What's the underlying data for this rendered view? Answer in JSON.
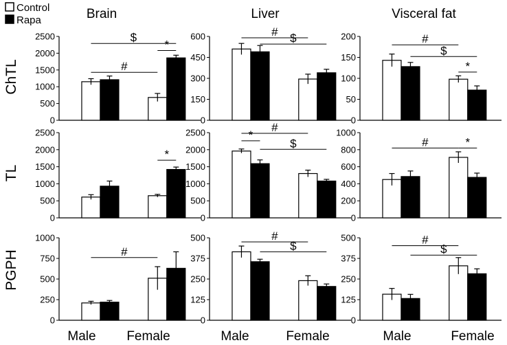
{
  "legend": [
    {
      "label": "Control",
      "fill": "#ffffff"
    },
    {
      "label": "Rapa",
      "fill": "#000000"
    }
  ],
  "columns": [
    "Brain",
    "Liver",
    "Visceral fat"
  ],
  "rows": [
    "ChTL",
    "TL",
    "PGPH"
  ],
  "x_categories": [
    "Male",
    "Female"
  ],
  "colors": {
    "control": "#ffffff",
    "rapa": "#000000",
    "stroke": "#000000"
  },
  "chart_data": [
    {
      "type": "bar",
      "row": "ChTL",
      "column": "Brain",
      "categories": [
        "Male",
        "Female"
      ],
      "ylim": [
        0,
        2500
      ],
      "yticks": [
        "0",
        "500",
        "1000",
        "1500",
        "2000",
        "2500"
      ],
      "series": [
        {
          "name": "Control",
          "values": [
            1150,
            680
          ],
          "errors": [
            90,
            120
          ]
        },
        {
          "name": "Rapa",
          "values": [
            1210,
            1860
          ],
          "errors": [
            110,
            80
          ]
        }
      ],
      "annotations": [
        {
          "text": "$",
          "from": [
            0,
            0
          ],
          "to": [
            1,
            1
          ],
          "y": 2290
        },
        {
          "text": "*",
          "from": [
            1,
            0
          ],
          "to": [
            1,
            1
          ],
          "y": 2080
        },
        {
          "text": "#",
          "from": [
            0,
            0
          ],
          "to": [
            1,
            0
          ],
          "y": 1430
        }
      ]
    },
    {
      "type": "bar",
      "row": "ChTL",
      "column": "Liver",
      "categories": [
        "Male",
        "Female"
      ],
      "ylim": [
        0,
        600
      ],
      "yticks": [
        "0",
        "150",
        "300",
        "450",
        "600"
      ],
      "series": [
        {
          "name": "Control",
          "values": [
            510,
            295
          ],
          "errors": [
            40,
            35
          ]
        },
        {
          "name": "Rapa",
          "values": [
            490,
            340
          ],
          "errors": [
            45,
            25
          ]
        }
      ],
      "annotations": [
        {
          "text": "#",
          "from": [
            0,
            0
          ],
          "to": [
            1,
            0
          ],
          "y": 590
        },
        {
          "text": "$",
          "from": [
            0,
            1
          ],
          "to": [
            1,
            1
          ],
          "y": 545
        }
      ]
    },
    {
      "type": "bar",
      "row": "ChTL",
      "column": "Visceral fat",
      "categories": [
        "Male",
        "Female"
      ],
      "ylim": [
        0,
        200
      ],
      "yticks": [
        "0",
        "50",
        "100",
        "150",
        "200"
      ],
      "series": [
        {
          "name": "Control",
          "values": [
            143,
            98
          ],
          "errors": [
            15,
            8
          ]
        },
        {
          "name": "Rapa",
          "values": [
            128,
            72
          ],
          "errors": [
            10,
            10
          ]
        }
      ],
      "annotations": [
        {
          "text": "#",
          "from": [
            0,
            0
          ],
          "to": [
            1,
            0
          ],
          "y": 180
        },
        {
          "text": "$",
          "from": [
            0,
            1
          ],
          "to": [
            1,
            1
          ],
          "y": 152
        },
        {
          "text": "*",
          "from": [
            1,
            0
          ],
          "to": [
            1,
            1
          ],
          "y": 115
        }
      ]
    },
    {
      "type": "bar",
      "row": "TL",
      "column": "Brain",
      "categories": [
        "Male",
        "Female"
      ],
      "ylim": [
        0,
        2500
      ],
      "yticks": [
        "0",
        "500",
        "1000",
        "1500",
        "2000",
        "2500"
      ],
      "series": [
        {
          "name": "Control",
          "values": [
            610,
            650
          ],
          "errors": [
            70,
            40
          ]
        },
        {
          "name": "Rapa",
          "values": [
            930,
            1420
          ],
          "errors": [
            150,
            70
          ]
        }
      ],
      "annotations": [
        {
          "text": "*",
          "from": [
            1,
            0
          ],
          "to": [
            1,
            1
          ],
          "y": 1690
        }
      ]
    },
    {
      "type": "bar",
      "row": "TL",
      "column": "Liver",
      "categories": [
        "Male",
        "Female"
      ],
      "ylim": [
        0,
        2500
      ],
      "yticks": [
        "0",
        "500",
        "1000",
        "1500",
        "2000",
        "2500"
      ],
      "series": [
        {
          "name": "Control",
          "values": [
            1960,
            1300
          ],
          "errors": [
            60,
            100
          ]
        },
        {
          "name": "Rapa",
          "values": [
            1590,
            1080
          ],
          "errors": [
            110,
            50
          ]
        }
      ],
      "annotations": [
        {
          "text": "*",
          "from": [
            0,
            0
          ],
          "to": [
            0,
            1
          ],
          "y": 2260
        },
        {
          "text": "#",
          "from": [
            0,
            0
          ],
          "to": [
            1,
            0
          ],
          "y": 2480
        },
        {
          "text": "$",
          "from": [
            0,
            1
          ],
          "to": [
            1,
            1
          ],
          "y": 2010
        }
      ]
    },
    {
      "type": "bar",
      "row": "TL",
      "column": "Visceral fat",
      "categories": [
        "Male",
        "Female"
      ],
      "ylim": [
        0,
        1000
      ],
      "yticks": [
        "0",
        "200",
        "400",
        "600",
        "800",
        "1000"
      ],
      "series": [
        {
          "name": "Control",
          "values": [
            450,
            710
          ],
          "errors": [
            70,
            65
          ]
        },
        {
          "name": "Rapa",
          "values": [
            485,
            475
          ],
          "errors": [
            65,
            50
          ]
        }
      ],
      "annotations": [
        {
          "text": "#",
          "from": [
            0,
            0
          ],
          "to": [
            1,
            0
          ],
          "y": 820
        },
        {
          "text": "*",
          "from": [
            1,
            0
          ],
          "to": [
            1,
            1
          ],
          "y": 820
        }
      ]
    },
    {
      "type": "bar",
      "row": "PGPH",
      "column": "Brain",
      "categories": [
        "Male",
        "Female"
      ],
      "ylim": [
        0,
        1000
      ],
      "yticks": [
        "0",
        "250",
        "500",
        "750",
        "1000"
      ],
      "series": [
        {
          "name": "Control",
          "values": [
            210,
            510
          ],
          "errors": [
            20,
            140
          ]
        },
        {
          "name": "Rapa",
          "values": [
            220,
            630
          ],
          "errors": [
            20,
            200
          ]
        }
      ],
      "annotations": [
        {
          "text": "#",
          "from": [
            0,
            0
          ],
          "to": [
            1,
            0
          ],
          "y": 760
        }
      ]
    },
    {
      "type": "bar",
      "row": "PGPH",
      "column": "Liver",
      "categories": [
        "Male",
        "Female"
      ],
      "ylim": [
        0,
        500
      ],
      "yticks": [
        "0",
        "125",
        "250",
        "375",
        "500"
      ],
      "series": [
        {
          "name": "Control",
          "values": [
            415,
            240
          ],
          "errors": [
            35,
            30
          ]
        },
        {
          "name": "Rapa",
          "values": [
            355,
            205
          ],
          "errors": [
            15,
            15
          ]
        }
      ],
      "annotations": [
        {
          "text": "#",
          "from": [
            0,
            0
          ],
          "to": [
            1,
            0
          ],
          "y": 475
        },
        {
          "text": "$",
          "from": [
            0,
            1
          ],
          "to": [
            1,
            1
          ],
          "y": 415
        }
      ]
    },
    {
      "type": "bar",
      "row": "PGPH",
      "column": "Visceral fat",
      "categories": [
        "Male",
        "Female"
      ],
      "ylim": [
        0,
        500
      ],
      "yticks": [
        "0",
        "125",
        "250",
        "375",
        "500"
      ],
      "series": [
        {
          "name": "Control",
          "values": [
            158,
            330
          ],
          "errors": [
            35,
            50
          ]
        },
        {
          "name": "Rapa",
          "values": [
            132,
            282
          ],
          "errors": [
            25,
            30
          ]
        }
      ],
      "annotations": [
        {
          "text": "#",
          "from": [
            0,
            0
          ],
          "to": [
            1,
            0
          ],
          "y": 452
        },
        {
          "text": "$",
          "from": [
            0,
            1
          ],
          "to": [
            1,
            1
          ],
          "y": 395
        }
      ]
    }
  ]
}
